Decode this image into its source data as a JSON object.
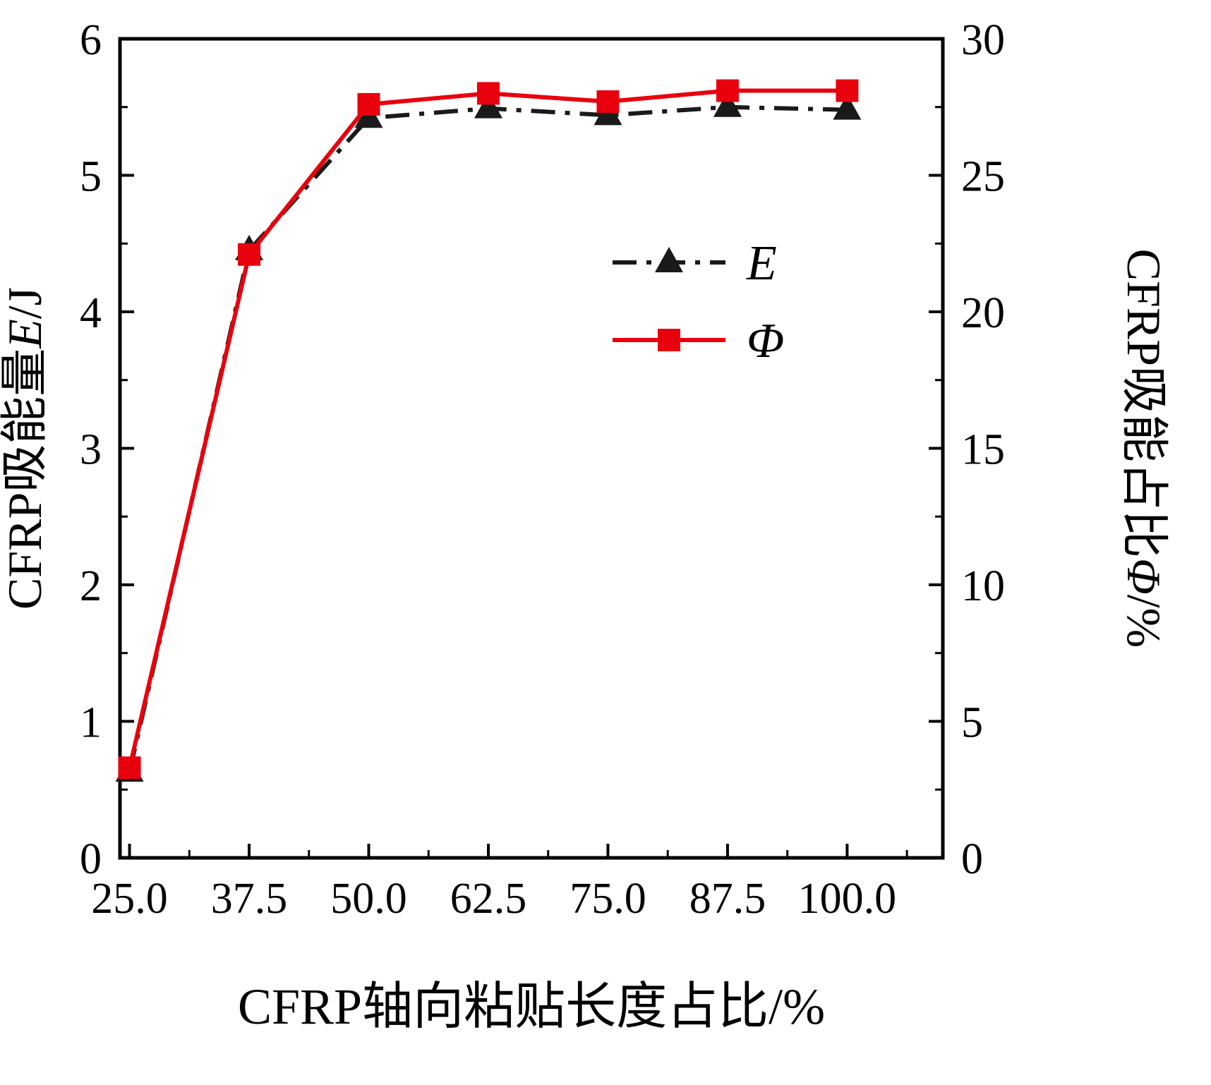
{
  "chart_data": {
    "type": "line",
    "x": [
      25.0,
      37.5,
      50.0,
      62.5,
      75.0,
      87.5,
      100.0
    ],
    "series": [
      {
        "name": "E",
        "axis": "left",
        "color": "#1a1a1a",
        "marker": "triangle",
        "line_style": "dash-dot",
        "values": [
          0.63,
          4.45,
          5.42,
          5.49,
          5.44,
          5.5,
          5.48
        ]
      },
      {
        "name": "Φ",
        "axis": "right",
        "color": "#e8000d",
        "marker": "square",
        "line_style": "solid",
        "values": [
          3.3,
          22.1,
          27.6,
          28.0,
          27.7,
          28.1,
          28.1
        ]
      }
    ],
    "title": "",
    "xlabel": "CFRP轴向粘贴长度占比/%",
    "ylabel_left": "CFRP吸能量E/J",
    "ylabel_right": "CFRP吸能占比Φ/%",
    "xlim": [
      24,
      110
    ],
    "ylim_left": [
      0,
      6
    ],
    "ylim_right": [
      0,
      30
    ],
    "xticks": [
      25.0,
      37.5,
      50.0,
      62.5,
      75.0,
      87.5,
      100.0
    ],
    "xtick_labels": [
      "25.0",
      "37.5",
      "50.0",
      "62.5",
      "75.0",
      "87.5",
      "100.0"
    ],
    "yticks_left": [
      0,
      1,
      2,
      3,
      4,
      5,
      6
    ],
    "ytick_labels_left": [
      "0",
      "1",
      "2",
      "3",
      "4",
      "5",
      "6"
    ],
    "yticks_right": [
      0,
      5,
      10,
      15,
      20,
      25,
      30
    ],
    "ytick_labels_right": [
      "0",
      "5",
      "10",
      "15",
      "20",
      "25",
      "30"
    ],
    "legend": {
      "position": "center-right",
      "entries": [
        {
          "label": "E",
          "series": "E"
        },
        {
          "label": "Φ",
          "series": "Φ"
        }
      ]
    },
    "grid": false,
    "ink_color": "#000000",
    "background_color": "#ffffff"
  }
}
